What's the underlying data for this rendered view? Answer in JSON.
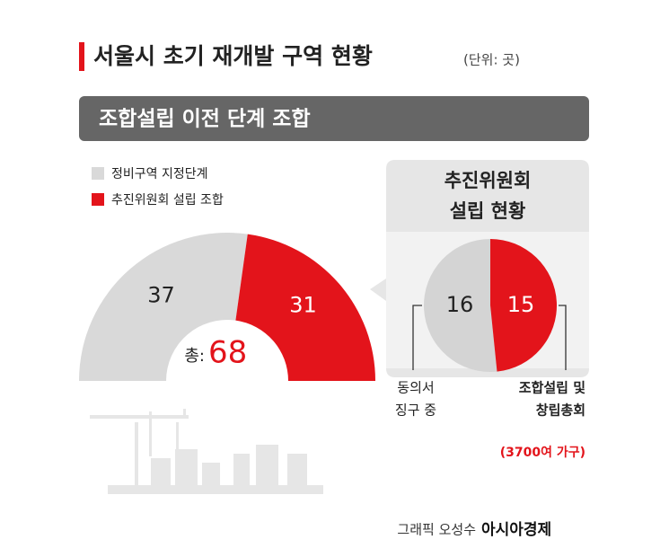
{
  "title": "서울시 초기 재개발 구역 현황",
  "unit": "(단위: 곳)",
  "banner": "조합설립 이전 단계 조합",
  "credit": "그래픽 오성수",
  "source": "아시아경제",
  "chart_data": [
    {
      "type": "half-donut",
      "categories": [
        "정비구역 지정단계",
        "추진위원회 설립 조합"
      ],
      "values": [
        37,
        31
      ],
      "colors": [
        "#d9d9d9",
        "#e3141b"
      ],
      "total_label": "총:",
      "total": 68
    },
    {
      "type": "pie",
      "title": [
        "추진위원회",
        "설립 현황"
      ],
      "categories": [
        [
          "동의서",
          "징구 중"
        ],
        [
          "조합설립 및",
          "창립총회"
        ]
      ],
      "values": [
        16,
        15
      ],
      "colors": [
        "#d4d4d4",
        "#e3141b"
      ],
      "note": "(3700여 가구)"
    }
  ]
}
